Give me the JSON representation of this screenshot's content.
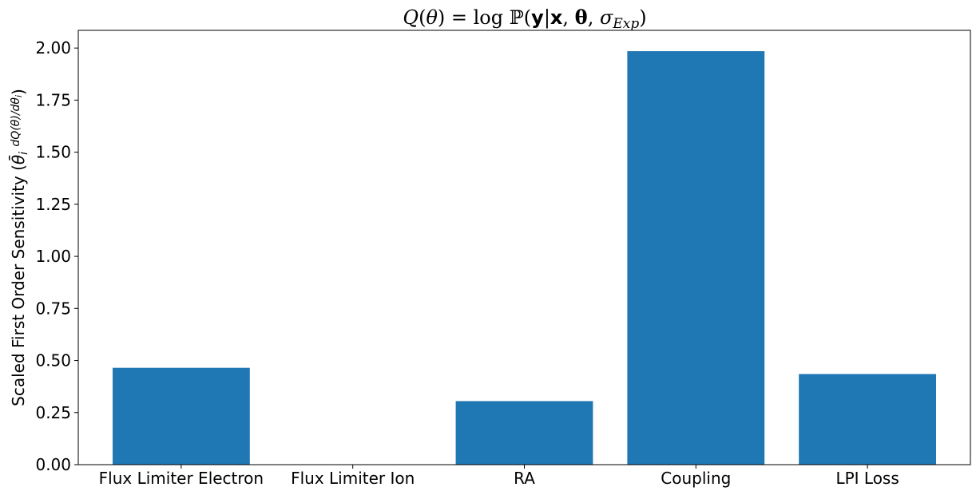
{
  "chart_data": {
    "type": "bar",
    "title": "Q(θ) = log ℙ(y|x, θ, σExp)",
    "xlabel": "",
    "ylabel": "Scaled First Order Sensitivity (θ̄i dQ(θ)/dθi)",
    "categories": [
      "Flux Limiter Electron",
      "Flux Limiter Ion",
      "RA",
      "Coupling",
      "LPI Loss"
    ],
    "values": [
      0.465,
      0.0,
      0.305,
      1.985,
      0.435
    ],
    "ylim": [
      0,
      2.085
    ],
    "yticks": [
      0.0,
      0.25,
      0.5,
      0.75,
      1.0,
      1.25,
      1.5,
      1.75,
      2.0
    ],
    "ytick_labels": [
      "0.00",
      "0.25",
      "0.50",
      "0.75",
      "1.00",
      "1.25",
      "1.50",
      "1.75",
      "2.00"
    ],
    "bar_color": "#1f77b4",
    "grid": false
  }
}
